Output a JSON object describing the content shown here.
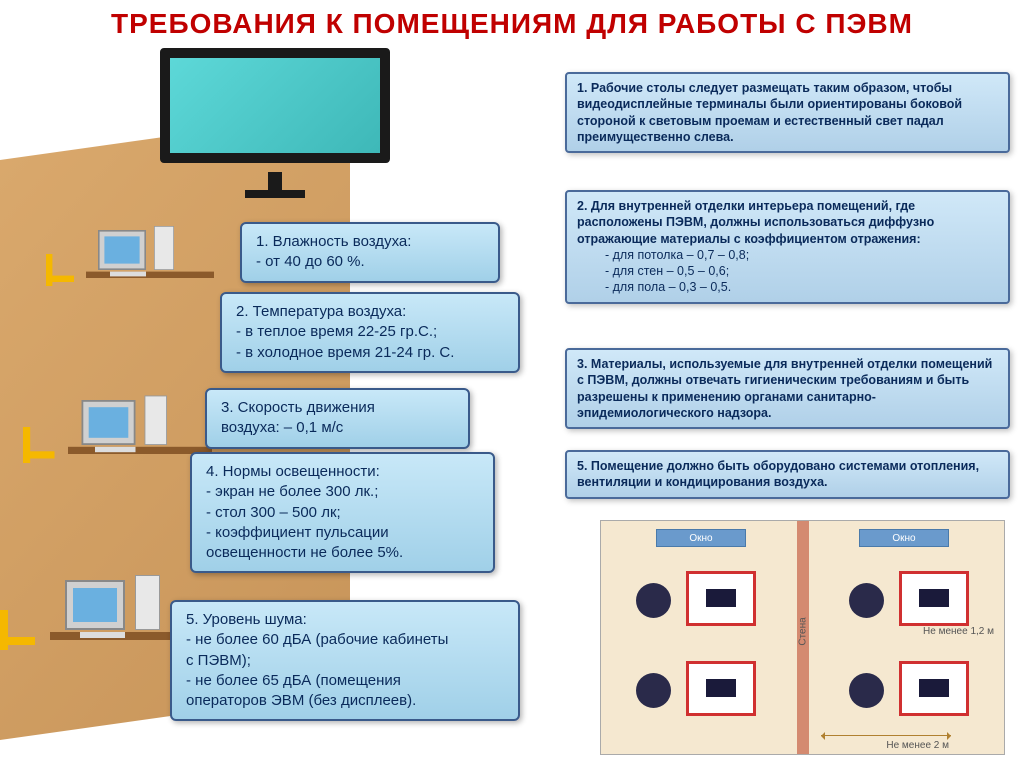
{
  "title": "ТРЕБОВАНИЯ К ПОМЕЩЕНИЯМ ДЛЯ РАБОТЫ С ПЭВМ",
  "colors": {
    "title": "#c00000",
    "box_bg_top": "#c8e8f8",
    "box_bg_bottom": "#a0d0e8",
    "box_border": "#3a5a8a",
    "box_text": "#0a2a5a",
    "floor": "#d9a86c",
    "chair": "#f5b800",
    "desk_border": "#d03030",
    "diagram_bg": "#f5e8d0",
    "wall": "#d48a70",
    "window": "#6a9acc"
  },
  "left_boxes": [
    {
      "title": "   1. Влажность воздуха:",
      "lines": [
        "- от 40 до 60 %."
      ]
    },
    {
      "title": "   2. Температура воздуха:",
      "lines": [
        "- в теплое время 22-25 гр.С.;",
        "- в холодное время 21-24 гр. С."
      ]
    },
    {
      "title": "  3. Скорость движения",
      "lines": [
        "   воздуха:    – 0,1 м/с"
      ]
    },
    {
      "title": " 4. Нормы освещенности:",
      "lines": [
        "- экран не более 300 лк.;",
        "- стол 300 – 500 лк;",
        "- коэффициент пульсации",
        "освещенности не более 5%."
      ]
    },
    {
      "title": "5. Уровень шума:",
      "lines": [
        "- не более 60 дБА (рабочие кабинеты",
        "с ПЭВМ);",
        "- не более 65 дБА (помещения",
        "операторов ЭВМ (без дисплеев)."
      ]
    }
  ],
  "right_boxes": [
    {
      "text": "1. Рабочие столы следует размещать  таким образом, чтобы видеодисплейные терминалы были ориентированы боковой стороной к световым проемам  и естественный свет падал преимущественно слева."
    },
    {
      "header": "2. Для внутренней отделки интерьера помещений, где расположены ПЭВМ, должны использоваться диффузно отражающие материалы с коэффициентом отражения:",
      "items": [
        "-    для потолка   –  0,7 – 0,8;",
        "-    для стен   – 0,5 – 0,6;",
        "-    для пола   – 0,3 – 0,5."
      ]
    },
    {
      "text": "3. Материалы, используемые для внутренней отделки помещений с ПЭВМ, должны  отвечать гигиеническим требованиям и быть разрешены к применению органами санитарно-эпидемиологического надзора."
    },
    {
      "text": " 5. Помещение должно быть оборудовано системами отопления, вентиляции и кондицирования воздуха."
    }
  ],
  "diagram": {
    "window_label": "Окно",
    "wall_label": "Стена",
    "dist1": "Не менее 1,2 м",
    "dist2": "Не менее 2 м"
  }
}
